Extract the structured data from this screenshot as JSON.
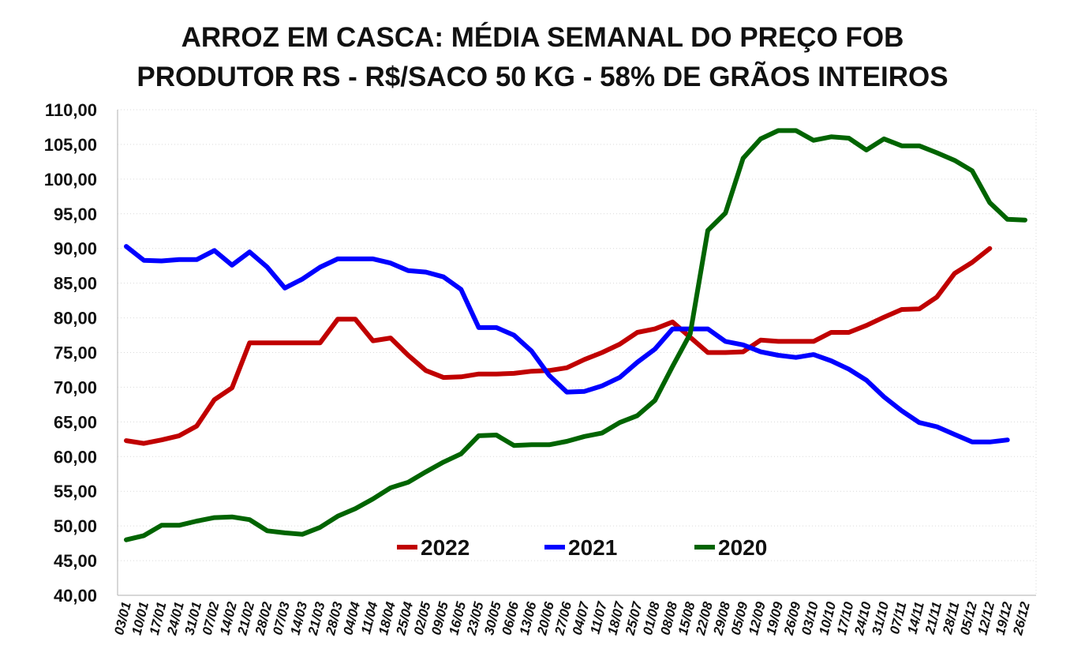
{
  "chart_data": {
    "type": "line",
    "title_line1": "ARROZ EM CASCA: MÉDIA SEMANAL DO PREÇO FOB",
    "title_line2": "PRODUTOR RS - R$/SACO 50 KG - 58% DE GRÃOS INTEIROS",
    "ylim": [
      40,
      110
    ],
    "ytick_step": 5,
    "ytick_labels": [
      "40,00",
      "45,00",
      "50,00",
      "55,00",
      "60,00",
      "65,00",
      "70,00",
      "75,00",
      "80,00",
      "85,00",
      "90,00",
      "95,00",
      "100,00",
      "105,00",
      "110,00"
    ],
    "grid": true,
    "legend_position": "bottom-center",
    "categories": [
      "03/01",
      "10/01",
      "17/01",
      "24/01",
      "31/01",
      "07/02",
      "14/02",
      "21/02",
      "28/02",
      "07/03",
      "14/03",
      "21/03",
      "28/03",
      "04/04",
      "11/04",
      "18/04",
      "25/04",
      "02/05",
      "09/05",
      "16/05",
      "23/05",
      "30/05",
      "06/06",
      "13/06",
      "20/06",
      "27/06",
      "04/07",
      "11/07",
      "18/07",
      "25/07",
      "01/08",
      "08/08",
      "15/08",
      "22/08",
      "29/08",
      "05/09",
      "12/09",
      "19/09",
      "26/09",
      "03/10",
      "10/10",
      "17/10",
      "24/10",
      "31/10",
      "07/11",
      "14/11",
      "21/11",
      "28/11",
      "05/12",
      "12/12",
      "19/12",
      "26/12"
    ],
    "series": [
      {
        "name": "2022",
        "color": "#c00000",
        "values": [
          62.3,
          61.9,
          62.4,
          63.0,
          64.4,
          68.2,
          69.9,
          76.4,
          76.4,
          76.4,
          76.4,
          76.4,
          79.8,
          79.8,
          76.7,
          77.1,
          74.6,
          72.4,
          71.4,
          71.5,
          71.9,
          71.9,
          72.0,
          72.3,
          72.4,
          72.8,
          74.0,
          75.0,
          76.2,
          77.9,
          78.4,
          79.4,
          77.2,
          75.0,
          75.0,
          75.1,
          76.8,
          76.6,
          76.6,
          76.6,
          77.9,
          77.9,
          78.9,
          80.1,
          81.2,
          81.3,
          83.0,
          86.4,
          88.0,
          90.0,
          null,
          null
        ]
      },
      {
        "name": "2021",
        "color": "#0000ff",
        "values": [
          90.3,
          88.3,
          88.2,
          88.4,
          88.4,
          89.7,
          87.6,
          89.5,
          87.3,
          84.3,
          85.6,
          87.3,
          88.5,
          88.5,
          88.5,
          87.9,
          86.8,
          86.6,
          85.9,
          84.1,
          78.6,
          78.6,
          77.5,
          75.2,
          71.7,
          69.3,
          69.4,
          70.2,
          71.4,
          73.6,
          75.5,
          78.4,
          78.4,
          78.4,
          76.6,
          76.1,
          75.1,
          74.6,
          74.3,
          74.7,
          73.8,
          72.6,
          71.0,
          68.6,
          66.6,
          64.9,
          64.3,
          63.2,
          62.1,
          62.1,
          62.4,
          null
        ]
      },
      {
        "name": "2020",
        "color": "#006400",
        "values": [
          48.0,
          48.6,
          50.1,
          50.1,
          50.7,
          51.2,
          51.3,
          50.9,
          49.3,
          49.0,
          48.8,
          49.8,
          51.4,
          52.5,
          53.9,
          55.5,
          56.3,
          57.8,
          59.2,
          60.4,
          63.0,
          63.1,
          61.6,
          61.7,
          61.7,
          62.2,
          62.9,
          63.4,
          64.9,
          65.9,
          68.1,
          73.0,
          77.7,
          92.6,
          95.1,
          103.0,
          105.8,
          107.0,
          107.0,
          105.6,
          106.1,
          105.9,
          104.2,
          105.8,
          104.8,
          104.8,
          103.8,
          102.7,
          101.2,
          96.6,
          94.2,
          94.1
        ]
      }
    ]
  }
}
